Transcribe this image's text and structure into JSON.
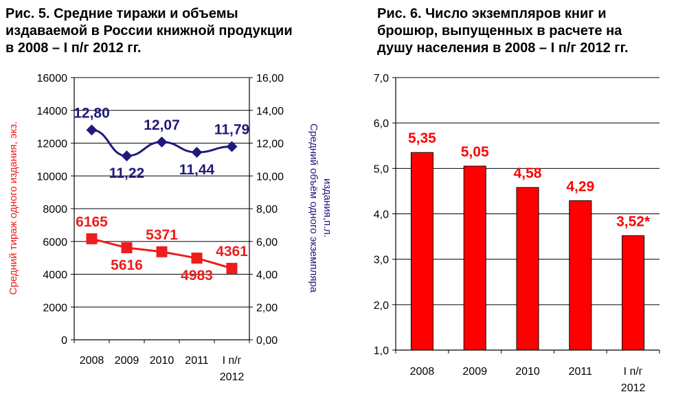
{
  "chart_data": [
    {
      "type": "line",
      "title": "Рис. 5. Средние тиражи и объемы\nиздаваемой в России книжной продукции\nв 2008 – I п/г 2012 гг.",
      "categories": [
        [
          "2008"
        ],
        [
          "2009"
        ],
        [
          "2010"
        ],
        [
          "2011"
        ],
        [
          "I п/г",
          "2012"
        ]
      ],
      "ylabel_left": "Средний тираж одного издания, экз.",
      "ylabel_right": [
        "Средний объём одного экземпляра",
        "издания,п.л."
      ],
      "ylim_left": [
        0,
        16000
      ],
      "ylim_right": [
        0,
        16
      ],
      "yticks_left": [
        "0",
        "2000",
        "4000",
        "6000",
        "8000",
        "10000",
        "12000",
        "14000",
        "16000"
      ],
      "yticks_right": [
        "0,00",
        "2,00",
        "4,00",
        "6,00",
        "8,00",
        "10,00",
        "12,00",
        "14,00",
        "16,00"
      ],
      "grid": "horizontal",
      "series": [
        {
          "axis": "right",
          "marker": "diamond",
          "color": "#1f1a7a",
          "values": [
            12.8,
            11.22,
            12.07,
            11.44,
            11.79
          ],
          "labels": [
            "12,80",
            "11,22",
            "12,07",
            "11,44",
            "11,79"
          ]
        },
        {
          "axis": "left",
          "marker": "square",
          "color": "#ee1c1c",
          "values": [
            6165,
            5616,
            5371,
            4983,
            4361
          ],
          "labels": [
            "6165",
            "5616",
            "5371",
            "4983",
            "4361"
          ]
        }
      ]
    },
    {
      "type": "bar",
      "title": "Рис. 6. Число экземпляров книг и\nброшюр, выпущенных в расчете на\nдушу населения в 2008 – I п/г 2012 гг.",
      "categories": [
        [
          "2008"
        ],
        [
          "2009"
        ],
        [
          "2010"
        ],
        [
          "2011"
        ],
        [
          "I п/г",
          "2012"
        ]
      ],
      "values": [
        5.35,
        5.05,
        4.58,
        4.29,
        3.52
      ],
      "labels": [
        "5,35",
        "5,05",
        "4,58",
        "4,29",
        "3,52*"
      ],
      "ylim": [
        1,
        7
      ],
      "yticks": [
        "1,0",
        "2,0",
        "3,0",
        "4,0",
        "5,0",
        "6,0",
        "7,0"
      ],
      "grid": "horizontal",
      "color": "#ff0000"
    }
  ]
}
